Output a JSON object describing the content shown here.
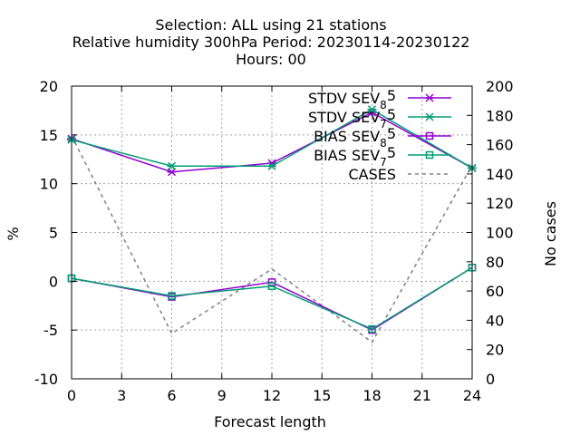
{
  "chart_data": {
    "type": "line",
    "title_lines": [
      "Selection: ALL using    21 stations",
      "Relative humidity 300hPa   Period: 20230114-20230122",
      "Hours:  00"
    ],
    "xlabel": "Forecast length",
    "ylabel": "%",
    "y2label": "No cases",
    "xlim": [
      0,
      24
    ],
    "ylim": [
      -10,
      20
    ],
    "y2lim": [
      0,
      200
    ],
    "xticks": [
      0,
      3,
      6,
      9,
      12,
      15,
      18,
      21,
      24
    ],
    "yticks": [
      -10,
      -5,
      0,
      5,
      10,
      15,
      20
    ],
    "y2ticks": [
      0,
      20,
      40,
      60,
      80,
      100,
      120,
      140,
      160,
      180,
      200
    ],
    "grid": true,
    "legend_position": "top-right",
    "series": [
      {
        "name": "STDV SEV_8 5",
        "legend_base": "STDV SEV",
        "legend_sub": "8",
        "legend_tail": "5",
        "color": "#9400d3",
        "marker": "x",
        "axis": "left",
        "x": [
          0,
          6,
          12,
          18,
          24
        ],
        "values": [
          14.6,
          11.2,
          12.1,
          17.3,
          11.6
        ]
      },
      {
        "name": "STDV SEV_7 5",
        "legend_base": "STDV SEV",
        "legend_sub": "7",
        "legend_tail": "5",
        "color": "#009e73",
        "marker": "x",
        "axis": "left",
        "x": [
          0,
          6,
          12,
          18,
          24
        ],
        "values": [
          14.5,
          11.8,
          11.8,
          17.6,
          11.6
        ]
      },
      {
        "name": "BIAS SEV_8 5",
        "legend_base": "BIAS SEV",
        "legend_sub": "8",
        "legend_tail": "5",
        "color": "#9400d3",
        "marker": "square",
        "axis": "left",
        "x": [
          0,
          6,
          12,
          18,
          24
        ],
        "values": [
          0.3,
          -1.6,
          -0.1,
          -5.0,
          1.4
        ]
      },
      {
        "name": "BIAS SEV_7 5",
        "legend_base": "BIAS SEV",
        "legend_sub": "7",
        "legend_tail": "5",
        "color": "#009e73",
        "marker": "square",
        "axis": "left",
        "x": [
          0,
          6,
          12,
          18,
          24
        ],
        "values": [
          0.3,
          -1.5,
          -0.5,
          -4.9,
          1.4
        ]
      },
      {
        "name": "CASES",
        "legend_base": "CASES",
        "legend_sub": "",
        "legend_tail": "",
        "color": "#808080",
        "marker": "none",
        "dashed": true,
        "axis": "right",
        "x": [
          0,
          6,
          12,
          18,
          24
        ],
        "values": [
          166,
          31,
          75,
          25,
          146
        ]
      }
    ]
  }
}
